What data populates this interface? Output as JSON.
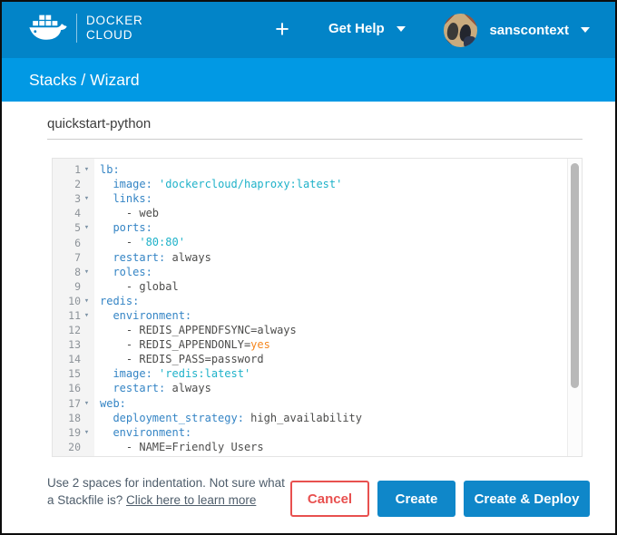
{
  "header": {
    "brand_line1": "DOCKER",
    "brand_line2": "CLOUD",
    "new_button_label": "+",
    "get_help_label": "Get Help",
    "username": "sanscontext"
  },
  "breadcrumb": {
    "text": "Stacks / Wizard"
  },
  "form": {
    "stack_name_value": "quickstart-python"
  },
  "icons": {
    "fold_arrow": "▾"
  },
  "editor": {
    "lines": [
      {
        "n": 1,
        "fold": true,
        "segs": [
          {
            "t": "lb:",
            "c": "key"
          }
        ]
      },
      {
        "n": 2,
        "fold": false,
        "segs": [
          {
            "t": "  "
          },
          {
            "t": "image:",
            "c": "key"
          },
          {
            "t": " "
          },
          {
            "t": "'dockercloud/haproxy:latest'",
            "c": "string"
          }
        ]
      },
      {
        "n": 3,
        "fold": true,
        "segs": [
          {
            "t": "  "
          },
          {
            "t": "links:",
            "c": "key"
          }
        ]
      },
      {
        "n": 4,
        "fold": false,
        "segs": [
          {
            "t": "    - web"
          }
        ]
      },
      {
        "n": 5,
        "fold": true,
        "segs": [
          {
            "t": "  "
          },
          {
            "t": "ports:",
            "c": "key"
          }
        ]
      },
      {
        "n": 6,
        "fold": false,
        "segs": [
          {
            "t": "    - "
          },
          {
            "t": "'80:80'",
            "c": "string"
          }
        ]
      },
      {
        "n": 7,
        "fold": false,
        "segs": [
          {
            "t": "  "
          },
          {
            "t": "restart:",
            "c": "key"
          },
          {
            "t": " always"
          }
        ]
      },
      {
        "n": 8,
        "fold": true,
        "segs": [
          {
            "t": "  "
          },
          {
            "t": "roles:",
            "c": "key"
          }
        ]
      },
      {
        "n": 9,
        "fold": false,
        "segs": [
          {
            "t": "    - global"
          }
        ]
      },
      {
        "n": 10,
        "fold": true,
        "segs": [
          {
            "t": "redis:",
            "c": "key"
          }
        ]
      },
      {
        "n": 11,
        "fold": true,
        "segs": [
          {
            "t": "  "
          },
          {
            "t": "environment:",
            "c": "key"
          }
        ]
      },
      {
        "n": 12,
        "fold": false,
        "segs": [
          {
            "t": "    - REDIS_APPENDFSYNC=always"
          }
        ]
      },
      {
        "n": 13,
        "fold": false,
        "segs": [
          {
            "t": "    - REDIS_APPENDONLY="
          },
          {
            "t": "yes",
            "c": "constant"
          }
        ]
      },
      {
        "n": 14,
        "fold": false,
        "segs": [
          {
            "t": "    - REDIS_PASS=password"
          }
        ]
      },
      {
        "n": 15,
        "fold": false,
        "segs": [
          {
            "t": "  "
          },
          {
            "t": "image:",
            "c": "key"
          },
          {
            "t": " "
          },
          {
            "t": "'redis:latest'",
            "c": "string"
          }
        ]
      },
      {
        "n": 16,
        "fold": false,
        "segs": [
          {
            "t": "  "
          },
          {
            "t": "restart:",
            "c": "key"
          },
          {
            "t": " always"
          }
        ]
      },
      {
        "n": 17,
        "fold": true,
        "segs": [
          {
            "t": "web:",
            "c": "key"
          }
        ]
      },
      {
        "n": 18,
        "fold": false,
        "segs": [
          {
            "t": "  "
          },
          {
            "t": "deployment_strategy:",
            "c": "key"
          },
          {
            "t": " high_availability"
          }
        ]
      },
      {
        "n": 19,
        "fold": true,
        "segs": [
          {
            "t": "  "
          },
          {
            "t": "environment:",
            "c": "key"
          }
        ]
      },
      {
        "n": 20,
        "fold": false,
        "segs": [
          {
            "t": "    - NAME=Friendly Users"
          }
        ]
      }
    ]
  },
  "footer": {
    "hint_text": "Use 2 spaces for indentation. Not sure what a Stackfile is? ",
    "hint_link": "Click here to learn more",
    "cancel_label": "Cancel",
    "create_label": "Create",
    "create_deploy_label": "Create & Deploy"
  },
  "colors": {
    "header_blue": "#0284c8",
    "breadcrumb_blue": "#0199e4",
    "button_blue": "#0f87c9",
    "cancel_red": "#e8504f",
    "syntax_key": "#3585c5",
    "syntax_string": "#1fb2c9",
    "syntax_constant": "#f5871f",
    "syntax_plain": "#4d4d4c"
  }
}
